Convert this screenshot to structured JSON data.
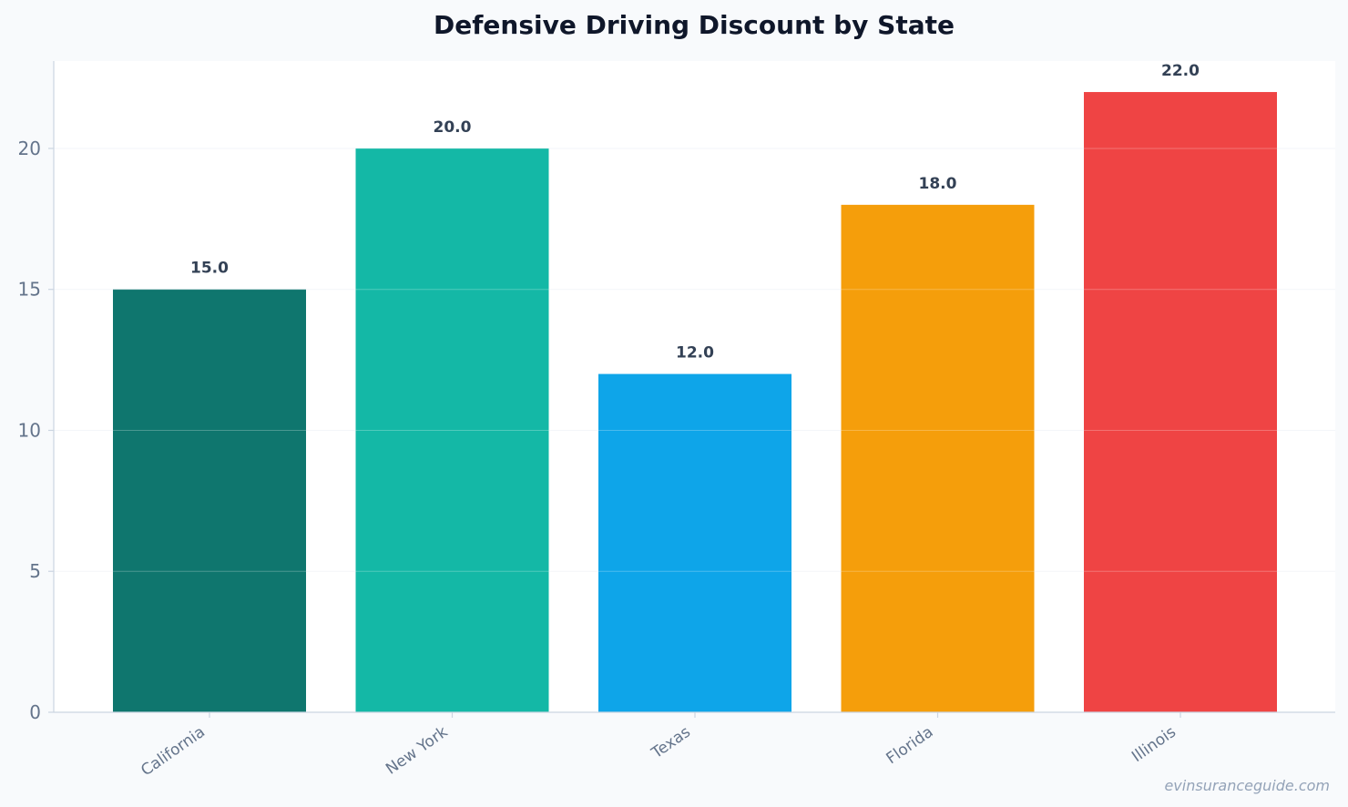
{
  "chart_data": {
    "type": "bar",
    "title": "Defensive Driving Discount by State",
    "xlabel": "",
    "ylabel": "",
    "categories": [
      "California",
      "New York",
      "Texas",
      "Florida",
      "Illinois"
    ],
    "values": [
      15.0,
      20.0,
      12.0,
      18.0,
      22.0
    ],
    "value_labels": [
      "15.0",
      "20.0",
      "12.0",
      "18.0",
      "22.0"
    ],
    "colors": [
      "#0f766e",
      "#14b8a6",
      "#0ea5e9",
      "#f59e0b",
      "#ef4444"
    ],
    "ylim": [
      0,
      23.1
    ],
    "yticks": [
      0,
      5,
      10,
      15,
      20
    ],
    "grid": true,
    "legend": "none"
  },
  "watermark": "evinsuranceguide.com",
  "colors": {
    "page_background": "#f8fafc",
    "plot_background": "#ffffff",
    "grid": "#e2e8f0",
    "axis": "#cbd5e1",
    "tick_text": "#64748b",
    "title_text": "#0f172a",
    "data_label_text": "#334155"
  }
}
